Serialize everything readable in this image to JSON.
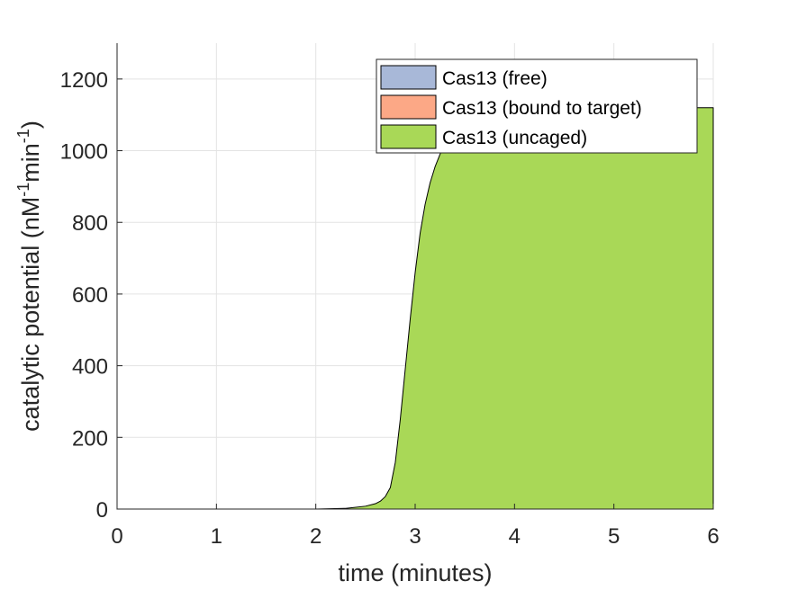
{
  "chart_data": {
    "type": "area",
    "title": "",
    "xlabel": "time (minutes)",
    "ylabel": "catalytic potential (nM",
    "ylabel_sup1": "-1",
    "ylabel_mid": "min",
    "ylabel_sup2": "-1",
    "ylabel_end": ")",
    "xlim": [
      0,
      6
    ],
    "ylim": [
      0,
      1300
    ],
    "xticks": [
      0,
      1,
      2,
      3,
      4,
      5,
      6
    ],
    "yticks": [
      0,
      200,
      400,
      600,
      800,
      1000,
      1200
    ],
    "grid": true,
    "stacked": true,
    "legend_position": "top-right",
    "series": [
      {
        "name": "Cas13 (free)",
        "color": "#A8B8D8",
        "x": [
          0,
          6
        ],
        "y": [
          0,
          0
        ]
      },
      {
        "name": "Cas13 (bound to target)",
        "color": "#FCA886",
        "x": [
          0,
          6
        ],
        "y": [
          0,
          0
        ]
      },
      {
        "name": "Cas13 (uncaged)",
        "color": "#A9D857",
        "x": [
          0,
          1,
          2,
          2.3,
          2.5,
          2.6,
          2.65,
          2.7,
          2.75,
          2.8,
          2.85,
          2.9,
          2.95,
          3.0,
          3.05,
          3.1,
          3.15,
          3.2,
          3.25,
          3.3,
          3.4,
          3.5,
          3.6,
          3.8,
          4.0,
          4.5,
          5.0,
          5.5,
          6.0
        ],
        "y": [
          0,
          0,
          0,
          2,
          8,
          15,
          22,
          35,
          60,
          130,
          250,
          390,
          530,
          660,
          770,
          850,
          910,
          955,
          990,
          1020,
          1060,
          1085,
          1100,
          1110,
          1115,
          1118,
          1119,
          1120,
          1120
        ]
      }
    ]
  }
}
